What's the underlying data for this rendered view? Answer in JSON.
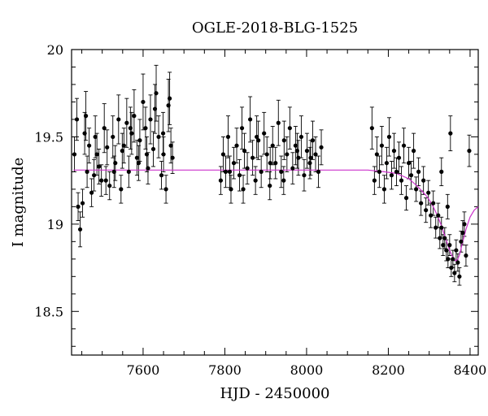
{
  "chart_data": {
    "type": "scatter",
    "title": "OGLE-2018-BLG-1525",
    "xlabel": "HJD - 2450000",
    "ylabel": "I magnitude",
    "xlim": [
      7425,
      8420
    ],
    "ylim": [
      20.0,
      18.25
    ],
    "y_axis_inverted": true,
    "grid": false,
    "xticks": [
      7600,
      7800,
      8000,
      8200,
      8400
    ],
    "xtick_labels": [
      "7600",
      "7800",
      "8000",
      "8200",
      "8400"
    ],
    "yticks": [
      18.5,
      19.0,
      19.5,
      20.0
    ],
    "ytick_labels": [
      "18.5",
      "19",
      "19.5",
      "20"
    ],
    "x_minor_step": 50,
    "y_minor_step": 0.1,
    "model_color": "#cc33cc",
    "point_color": "#000000",
    "model": {
      "name": "model",
      "baseline_mag": 19.31,
      "x": [
        7430,
        8150,
        8190,
        8220,
        8250,
        8270,
        8290,
        8300,
        8310,
        8320,
        8330,
        8340,
        8350,
        8360,
        8365,
        8370,
        8375,
        8380,
        8390,
        8400,
        8410,
        8420
      ],
      "y": [
        19.31,
        19.31,
        19.3,
        19.29,
        19.26,
        19.22,
        19.17,
        19.14,
        19.1,
        19.05,
        18.99,
        18.92,
        18.85,
        18.8,
        18.79,
        18.8,
        18.83,
        18.88,
        18.97,
        19.04,
        19.08,
        19.1
      ]
    },
    "observations": {
      "name": "data",
      "x": [
        7432,
        7438,
        7446,
        7452,
        7457,
        7460,
        7468,
        7474,
        7480,
        7487,
        7492,
        7498,
        7505,
        7512,
        7518,
        7526,
        7532,
        7540,
        7546,
        7553,
        7560,
        7565,
        7572,
        7578,
        7585,
        7592,
        7600,
        7606,
        7612,
        7618,
        7625,
        7632,
        7638,
        7645,
        7650,
        7656,
        7662,
        7668,
        7672,
        7441,
        7463,
        7483,
        7509,
        7529,
        7549,
        7569,
        7589,
        7609,
        7629,
        7649,
        7665,
        7790,
        7796,
        7802,
        7808,
        7815,
        7822,
        7829,
        7836,
        7842,
        7848,
        7855,
        7862,
        7868,
        7875,
        7882,
        7889,
        7896,
        7903,
        7910,
        7917,
        7924,
        7931,
        7938,
        7945,
        7952,
        7959,
        7966,
        7973,
        7980,
        7987,
        7994,
        8001,
        8008,
        8015,
        8022,
        8029,
        8036,
        7812,
        7845,
        7878,
        7911,
        7944,
        7977,
        8010,
        8160,
        8166,
        8172,
        8178,
        8184,
        8190,
        8196,
        8202,
        8208,
        8214,
        8220,
        8226,
        8232,
        8238,
        8244,
        8250,
        8256,
        8262,
        8268,
        8274,
        8280,
        8286,
        8292,
        8298,
        8304,
        8310,
        8316,
        8322,
        8326,
        8330,
        8334,
        8338,
        8342,
        8346,
        8350,
        8354,
        8358,
        8362,
        8366,
        8370,
        8374,
        8378,
        8382,
        8386,
        8390,
        8352,
        8398,
        8330,
        8345
      ],
      "y": [
        19.4,
        19.6,
        18.97,
        19.12,
        19.52,
        19.62,
        19.45,
        19.18,
        19.28,
        19.4,
        19.33,
        19.25,
        19.55,
        19.44,
        19.22,
        19.5,
        19.35,
        19.6,
        19.2,
        19.45,
        19.58,
        19.3,
        19.52,
        19.62,
        19.38,
        19.48,
        19.7,
        19.55,
        19.32,
        19.6,
        19.43,
        19.75,
        19.5,
        19.28,
        19.4,
        19.2,
        19.68,
        19.45,
        19.38,
        19.1,
        19.3,
        19.5,
        19.25,
        19.3,
        19.42,
        19.55,
        19.35,
        19.4,
        19.66,
        19.52,
        19.72,
        19.25,
        19.4,
        19.3,
        19.5,
        19.2,
        19.35,
        19.45,
        19.28,
        19.55,
        19.42,
        19.32,
        19.6,
        19.38,
        19.25,
        19.48,
        19.3,
        19.52,
        19.4,
        19.22,
        19.45,
        19.35,
        19.58,
        19.3,
        19.48,
        19.4,
        19.55,
        19.32,
        19.45,
        19.38,
        19.5,
        19.28,
        19.42,
        19.35,
        19.48,
        19.4,
        19.3,
        19.44,
        19.3,
        19.2,
        19.5,
        19.35,
        19.25,
        19.42,
        19.38,
        19.55,
        19.25,
        19.4,
        19.3,
        19.45,
        19.2,
        19.35,
        19.5,
        19.28,
        19.42,
        19.3,
        19.38,
        19.25,
        19.45,
        19.15,
        19.35,
        19.28,
        19.42,
        19.2,
        19.3,
        19.12,
        19.25,
        19.08,
        19.18,
        19.05,
        19.12,
        18.98,
        19.05,
        18.92,
        18.98,
        18.88,
        18.92,
        18.85,
        18.8,
        18.88,
        18.75,
        18.8,
        18.72,
        18.85,
        18.78,
        18.7,
        18.9,
        18.95,
        19.0,
        18.82,
        19.52,
        19.42,
        19.3,
        19.1
      ],
      "err": [
        0.1,
        0.12,
        0.1,
        0.08,
        0.12,
        0.14,
        0.1,
        0.08,
        0.09,
        0.12,
        0.1,
        0.09,
        0.14,
        0.1,
        0.08,
        0.12,
        0.1,
        0.14,
        0.08,
        0.1,
        0.14,
        0.09,
        0.12,
        0.15,
        0.1,
        0.12,
        0.16,
        0.12,
        0.09,
        0.14,
        0.1,
        0.16,
        0.12,
        0.08,
        0.1,
        0.08,
        0.15,
        0.1,
        0.09,
        0.08,
        0.09,
        0.12,
        0.08,
        0.09,
        0.1,
        0.12,
        0.1,
        0.1,
        0.14,
        0.12,
        0.15,
        0.08,
        0.1,
        0.09,
        0.12,
        0.08,
        0.09,
        0.1,
        0.09,
        0.12,
        0.1,
        0.09,
        0.13,
        0.1,
        0.08,
        0.11,
        0.09,
        0.12,
        0.1,
        0.08,
        0.11,
        0.09,
        0.13,
        0.09,
        0.11,
        0.1,
        0.12,
        0.09,
        0.11,
        0.1,
        0.12,
        0.09,
        0.1,
        0.09,
        0.11,
        0.1,
        0.09,
        0.1,
        0.09,
        0.08,
        0.12,
        0.09,
        0.08,
        0.1,
        0.1,
        0.12,
        0.08,
        0.1,
        0.09,
        0.11,
        0.08,
        0.09,
        0.11,
        0.08,
        0.1,
        0.08,
        0.09,
        0.08,
        0.1,
        0.07,
        0.09,
        0.08,
        0.1,
        0.07,
        0.08,
        0.07,
        0.08,
        0.07,
        0.07,
        0.07,
        0.07,
        0.06,
        0.07,
        0.06,
        0.06,
        0.06,
        0.06,
        0.06,
        0.05,
        0.06,
        0.05,
        0.05,
        0.05,
        0.06,
        0.05,
        0.05,
        0.06,
        0.07,
        0.07,
        0.06,
        0.1,
        0.09,
        0.08,
        0.07
      ]
    }
  }
}
